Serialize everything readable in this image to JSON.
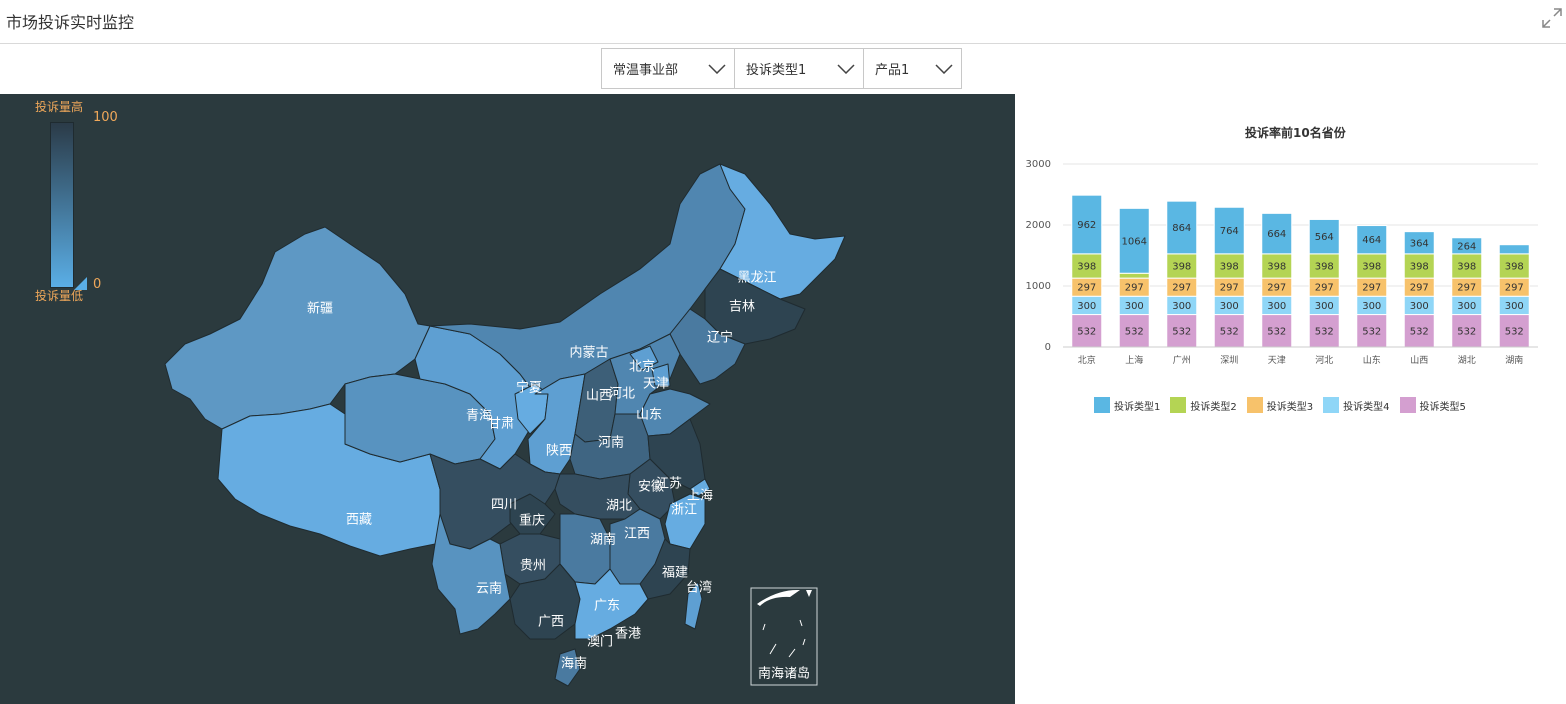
{
  "header": {
    "title": "市场投诉实时监控"
  },
  "filters": [
    {
      "label": "常温事业部"
    },
    {
      "label": "投诉类型1"
    },
    {
      "label": "产品1"
    }
  ],
  "map": {
    "legend": {
      "high_label": "投诉量高",
      "low_label": "投诉量低",
      "max": "100",
      "min": "0"
    },
    "south_sea_label": "南海诸岛",
    "provinces": [
      {
        "name": "黑龙江"
      },
      {
        "name": "吉林"
      },
      {
        "name": "辽宁"
      },
      {
        "name": "新疆"
      },
      {
        "name": "内蒙古"
      },
      {
        "name": "北京"
      },
      {
        "name": "天津"
      },
      {
        "name": "宁夏"
      },
      {
        "name": "山西"
      },
      {
        "name": "河北"
      },
      {
        "name": "青海"
      },
      {
        "name": "甘肃"
      },
      {
        "name": "山东"
      },
      {
        "name": "河南"
      },
      {
        "name": "陕西"
      },
      {
        "name": "西藏"
      },
      {
        "name": "四川"
      },
      {
        "name": "安徽"
      },
      {
        "name": "江苏"
      },
      {
        "name": "上海"
      },
      {
        "name": "湖北"
      },
      {
        "name": "重庆"
      },
      {
        "name": "浙江"
      },
      {
        "name": "湖南"
      },
      {
        "name": "江西"
      },
      {
        "name": "贵州"
      },
      {
        "name": "福建"
      },
      {
        "name": "云南"
      },
      {
        "name": "台湾"
      },
      {
        "name": "广东"
      },
      {
        "name": "广西"
      },
      {
        "name": "香港"
      },
      {
        "name": "澳门"
      },
      {
        "name": "海南"
      }
    ]
  },
  "chart_data": {
    "type": "bar",
    "title": "投诉率前10名省份",
    "categories": [
      "北京",
      "上海",
      "广州",
      "深圳",
      "天津",
      "河北",
      "山东",
      "山西",
      "湖北",
      "湖南"
    ],
    "yticks": [
      "0",
      "1000",
      "2000",
      "3000"
    ],
    "ylim": [
      0,
      3000
    ],
    "stacked": true,
    "series": [
      {
        "name": "投诉类型5",
        "color": "#d49fd0",
        "values": [
          532,
          532,
          532,
          532,
          532,
          532,
          532,
          532,
          532,
          532
        ]
      },
      {
        "name": "投诉类型4",
        "color": "#8fd6f7",
        "values": [
          300,
          300,
          300,
          300,
          300,
          300,
          300,
          300,
          300,
          300
        ]
      },
      {
        "name": "投诉类型3",
        "color": "#f7c26b",
        "values": [
          297,
          297,
          297,
          297,
          297,
          297,
          297,
          297,
          297,
          297
        ]
      },
      {
        "name": "投诉类型2",
        "color": "#b4d454",
        "values": [
          398,
          80,
          398,
          398,
          398,
          398,
          398,
          398,
          398,
          398
        ]
      },
      {
        "name": "投诉类型1",
        "color": "#5ab7e3",
        "values": [
          962,
          1064,
          864,
          764,
          664,
          564,
          464,
          364,
          264,
          150
        ]
      }
    ],
    "value_labels": {
      "投诉类型5": [
        "532",
        "532",
        "532",
        "532",
        "532",
        "532",
        "532",
        "532",
        "532",
        "532"
      ],
      "投诉类型4": [
        "300",
        "300",
        "300",
        "300",
        "300",
        "300",
        "300",
        "300",
        "300",
        "300"
      ],
      "投诉类型3": [
        "297",
        "297",
        "297",
        "297",
        "297",
        "297",
        "297",
        "297",
        "297",
        "297"
      ],
      "投诉类型2": [
        "398",
        "",
        "398",
        "398",
        "398",
        "398",
        "398",
        "398",
        "398",
        "398"
      ],
      "投诉类型1": [
        "962",
        "1064",
        "864",
        "764",
        "664",
        "564",
        "464",
        "364",
        "264",
        ""
      ]
    },
    "legend": [
      "投诉类型1",
      "投诉类型2",
      "投诉类型3",
      "投诉类型4",
      "投诉类型5"
    ],
    "legend_placement": "bottom",
    "grid": true
  }
}
